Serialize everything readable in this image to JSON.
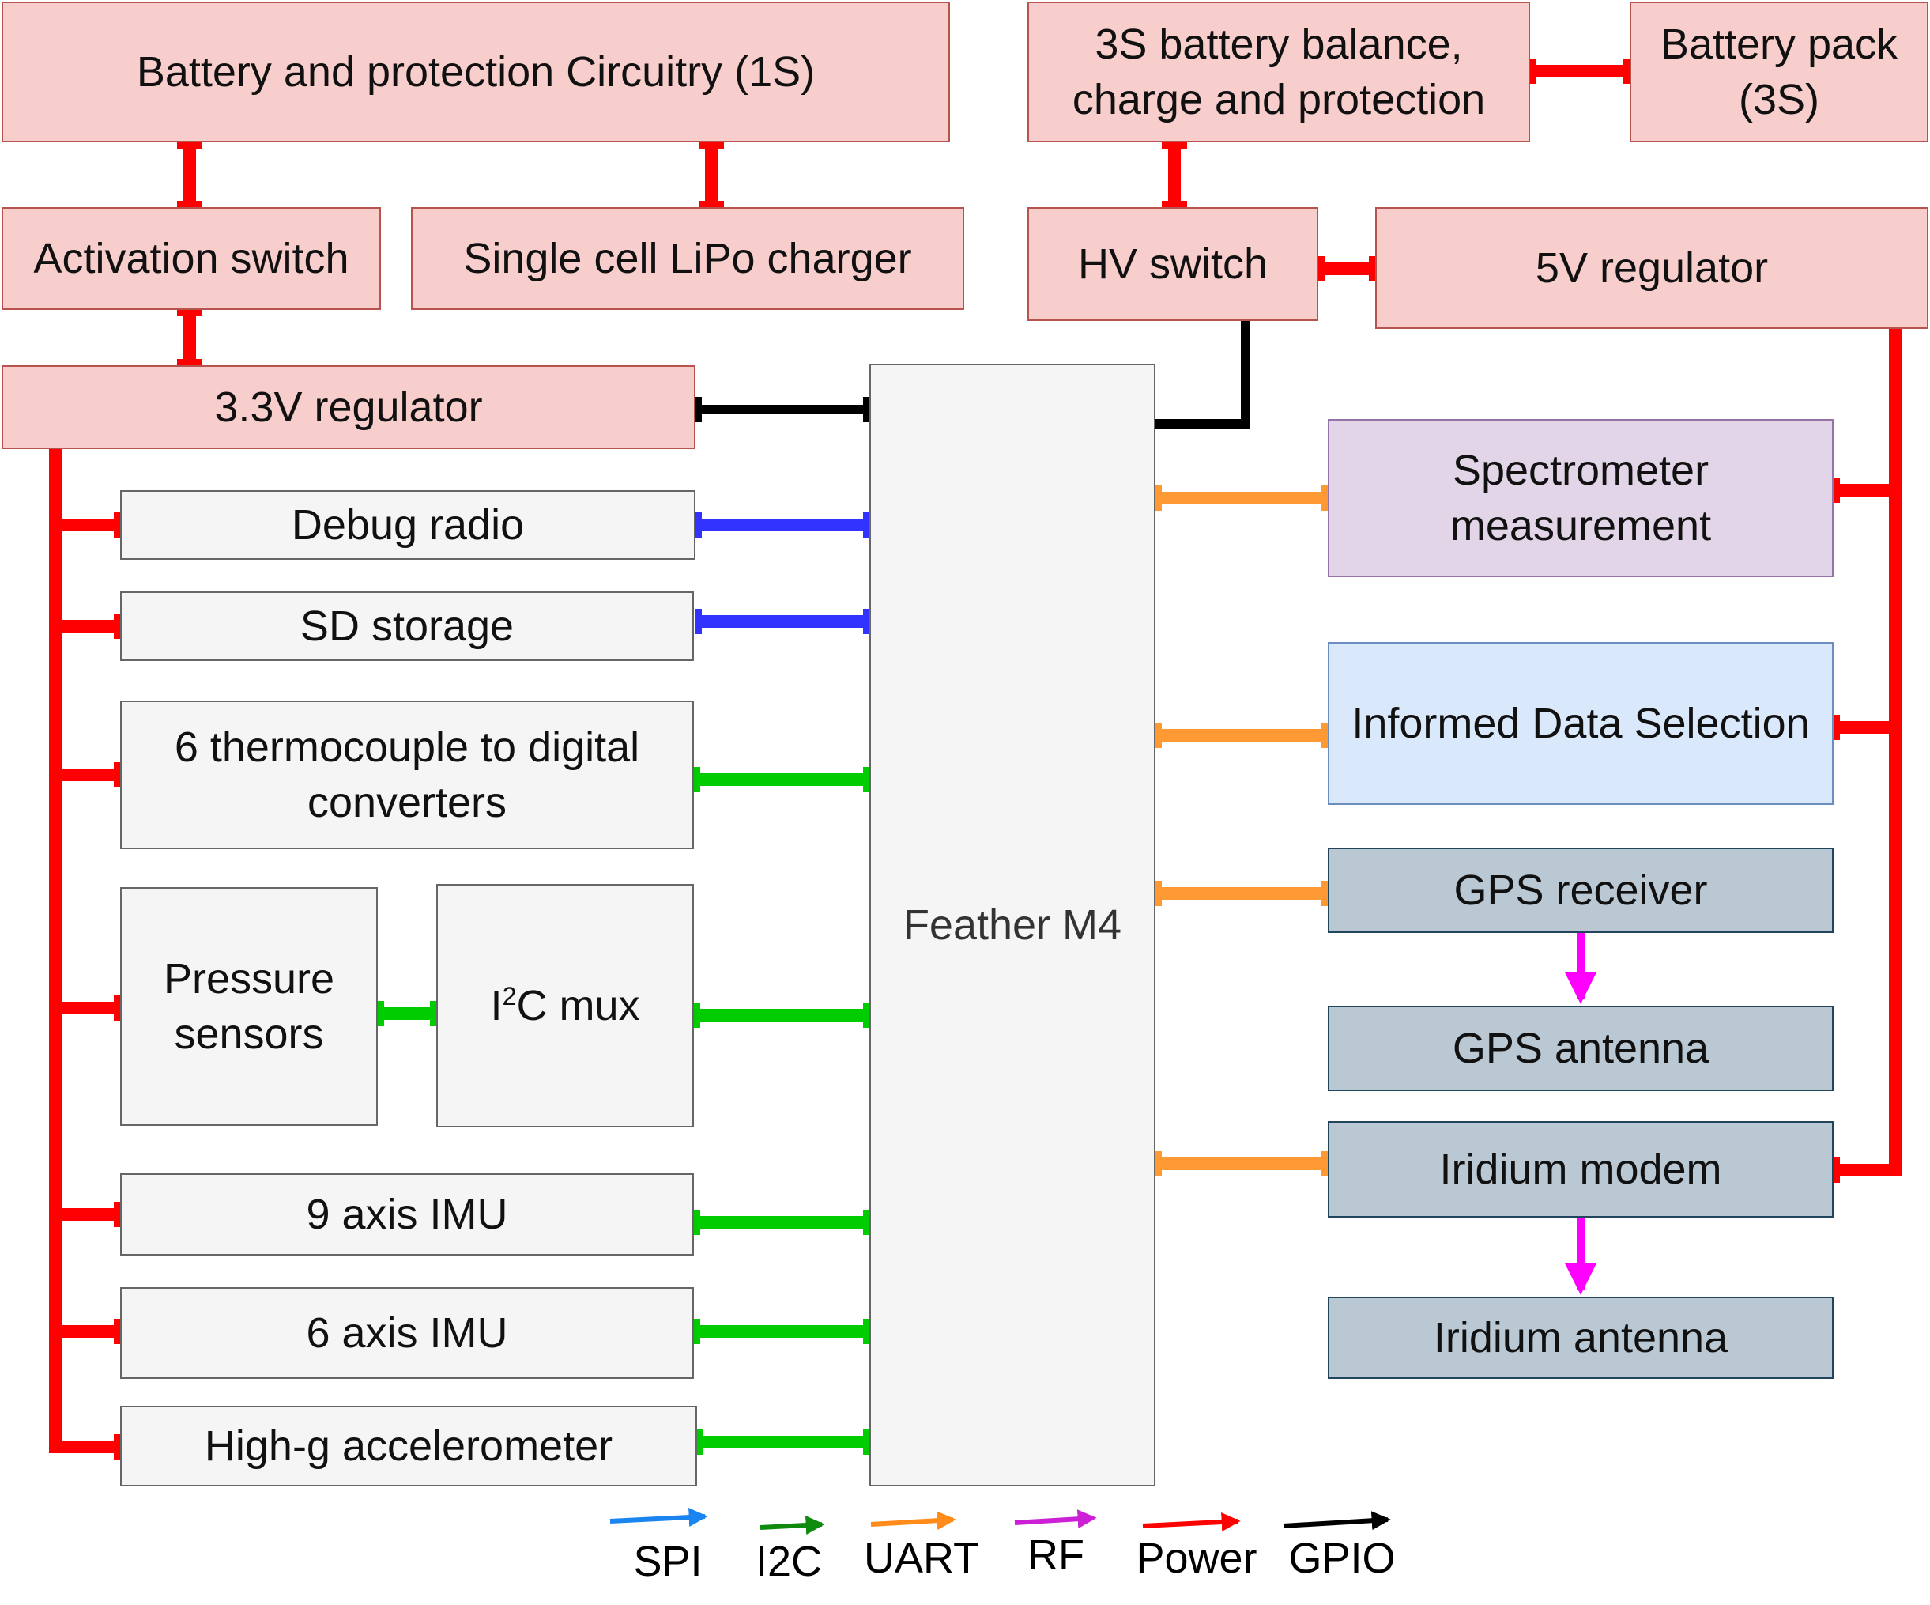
{
  "blocks": {
    "battery_1s": "Battery and protection Circuitry (1S)",
    "balance_3s": "3S battery balance,\ncharge and protection",
    "battery_pack_3s": "Battery pack\n(3S)",
    "activation_switch": "Activation switch",
    "lipo_charger": "Single cell LiPo charger",
    "hv_switch": "HV switch",
    "regulator_5v": "5V regulator",
    "regulator_3v3": "3.3V regulator",
    "debug_radio": "Debug radio",
    "sd_storage": "SD storage",
    "thermocouple": "6 thermocouple to digital\nconverters",
    "pressure_sensors": "Pressure\nsensors",
    "i2c_mux_pre": "I",
    "i2c_mux_sup": "2",
    "i2c_mux_post": "C mux",
    "imu_9": "9 axis IMU",
    "imu_6": "6 axis IMU",
    "high_g": "High-g accelerometer",
    "feather": "Feather M4",
    "spectrometer": "Spectrometer\nmeasurement",
    "informed_data": "Informed Data Selection",
    "gps_receiver": "GPS receiver",
    "gps_antenna": "GPS antenna",
    "iridium_modem": "Iridium modem",
    "iridium_antenna": "Iridium antenna"
  },
  "legend": [
    {
      "label": "SPI",
      "color": "#1a84f0"
    },
    {
      "label": "I2C",
      "color": "#0f8a0f"
    },
    {
      "label": "UART",
      "color": "#ff8c1a"
    },
    {
      "label": "RF",
      "color": "#cc1fd6"
    },
    {
      "label": "Power",
      "color": "#ff0000"
    },
    {
      "label": "GPIO",
      "color": "#000000"
    }
  ],
  "colors": {
    "power": "#ff0000",
    "gpio": "#000000",
    "spi": "#3333ff",
    "i2c": "#00cc00",
    "uart": "#ff9933",
    "rf": "#ff00ff"
  }
}
